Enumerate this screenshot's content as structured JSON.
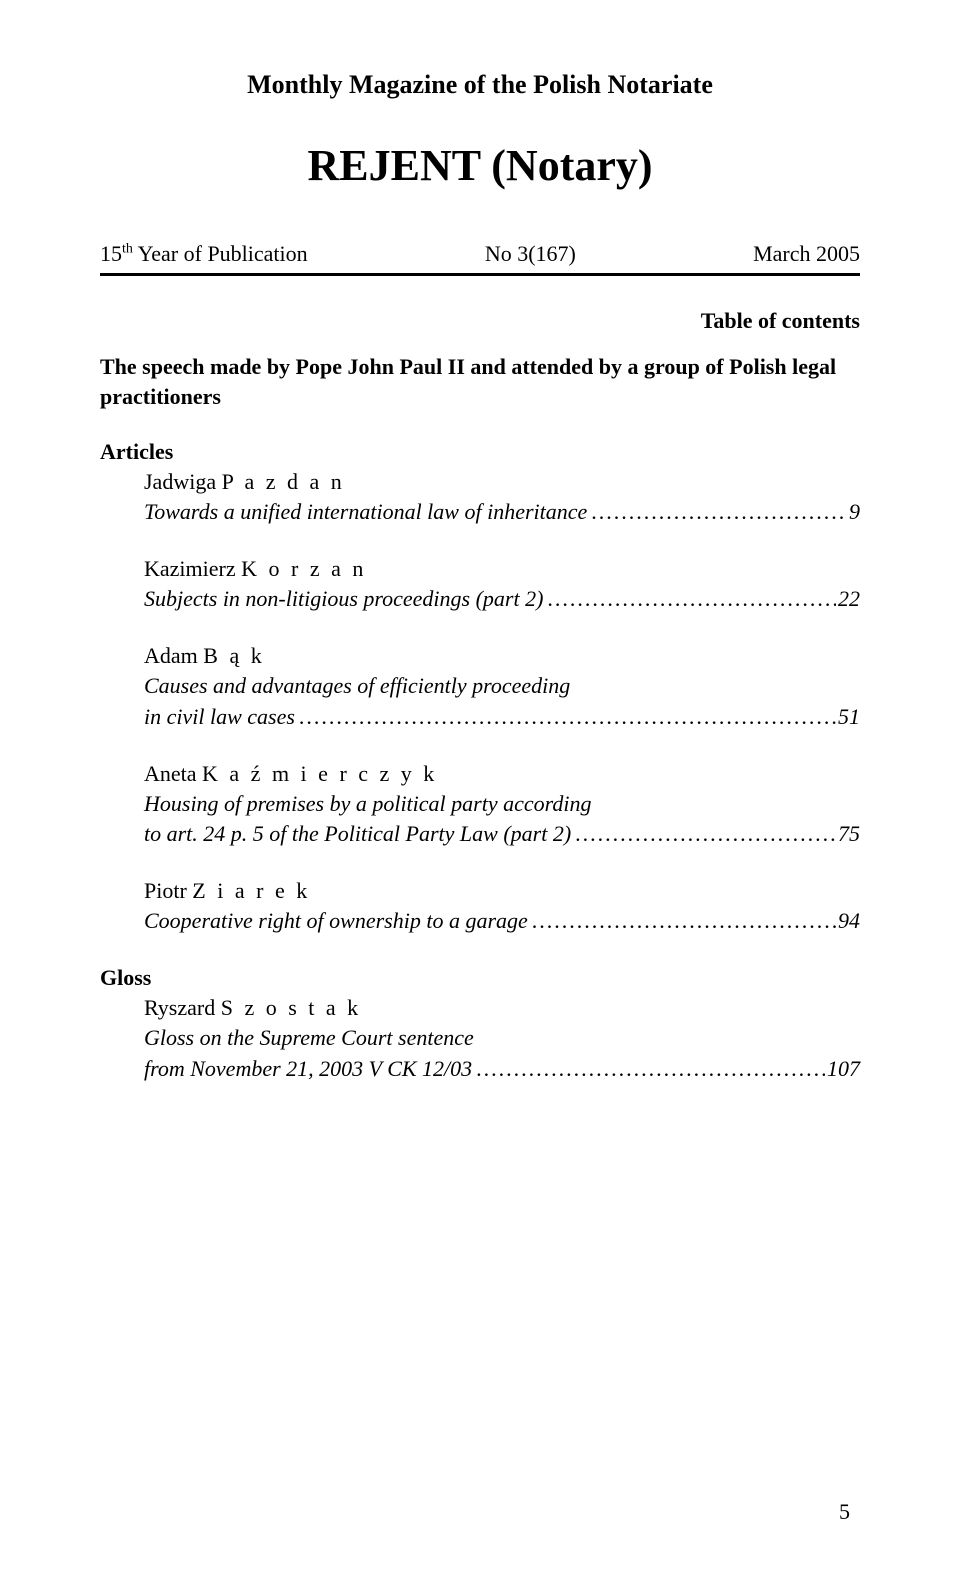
{
  "header": {
    "subtitle": "Monthly Magazine of the Polish Notariate",
    "title": "REJENT (Notary)",
    "year_ordinal": "15",
    "year_suffix": "th",
    "year_text": " Year of Publication",
    "issue": "No 3(167)",
    "date": "March 2005"
  },
  "toc_label": "Table of contents",
  "intro": "The speech made by Pope John Paul II and attended by a group of Polish legal practitioners",
  "sections": {
    "articles_heading": "Articles",
    "gloss_heading": "Gloss"
  },
  "entries": [
    {
      "first": "Jadwiga",
      "last": "P a z d a n",
      "title_last": "Towards a unified international law of inheritance",
      "page": "9"
    },
    {
      "first": "Kazimierz",
      "last": "K o r z a n",
      "title_last": "Subjects in non-litigious proceedings (part 2)",
      "page": "22"
    },
    {
      "first": "Adam",
      "last": "B ą k",
      "title_prefix": "Causes and advantages of efficiently proceeding",
      "title_last": "in civil law cases",
      "page": "51"
    },
    {
      "first": "Aneta",
      "last": "K a ź m i e r c z y k",
      "title_prefix": "Housing of premises by a political party according",
      "title_last": "to art. 24 p. 5 of the Political Party Law (part 2)",
      "page": "75"
    },
    {
      "first": "Piotr",
      "last": "Z i a r e k",
      "title_last": "Cooperative right of ownership to a garage",
      "page": "94"
    }
  ],
  "gloss_entry": {
    "first": "Ryszard",
    "last": "S z o s t a k",
    "title_prefix": "Gloss on the Supreme Court sentence",
    "title_last": "from November 21, 2003 V CK 12/03",
    "page": "107"
  },
  "footer_page": "5"
}
